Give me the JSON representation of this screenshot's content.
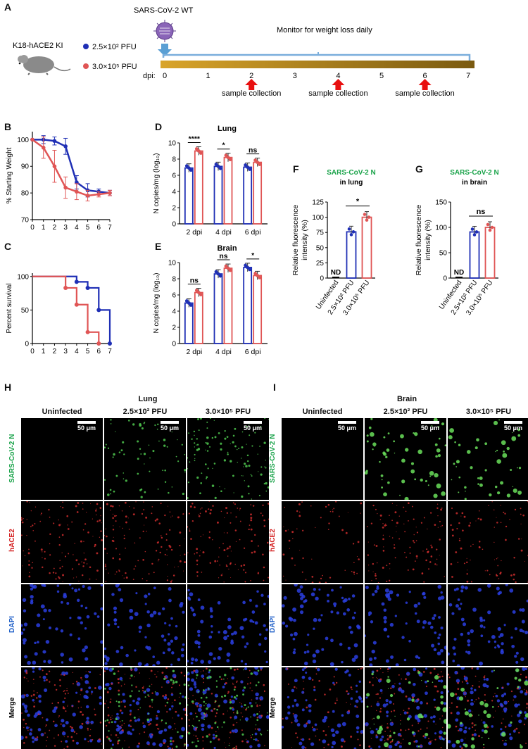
{
  "panel_labels": {
    "A": "A",
    "B": "B",
    "C": "C",
    "D": "D",
    "E": "E",
    "F": "F",
    "G": "G",
    "H": "H",
    "I": "I"
  },
  "timeline": {
    "mouse": "K18-hACE2 KI",
    "virus": "SARS-CoV-2 WT",
    "monitor": "Monitor for weight loss daily",
    "dose_low": "2.5×10² PFU",
    "dose_high": "3.0×10⁵ PFU",
    "dpi_label": "dpi:",
    "days": [
      "0",
      "1",
      "2",
      "3",
      "4",
      "5",
      "6",
      "7"
    ],
    "sample_label": "sample collection",
    "sample_days": [
      2,
      4,
      6
    ],
    "colors": {
      "low": "#1f2fb5",
      "high": "#e05555",
      "bar": "#b8860b",
      "arrow": "#e81010",
      "line": "#7aaedc"
    }
  },
  "chart_data": [
    {
      "id": "B",
      "type": "line",
      "ylabel": "% Starting Weight",
      "xticks": [
        "0",
        "1",
        "2",
        "3",
        "4",
        "5",
        "6",
        "7"
      ],
      "yticks": [
        "70",
        "80",
        "90",
        "100"
      ],
      "ylim": [
        70,
        103
      ],
      "xlim": [
        0,
        7
      ],
      "series": [
        {
          "values": [
            100,
            100,
            99.5,
            97.5,
            84,
            81,
            80.5,
            80
          ],
          "err": [
            0,
            1.5,
            1.5,
            3,
            2.5,
            2.5,
            1,
            1
          ]
        },
        {
          "values": [
            100,
            97,
            90,
            82,
            80.5,
            79,
            79.5,
            80
          ],
          "err": [
            0,
            4,
            6,
            4,
            3,
            2,
            1,
            1
          ]
        }
      ]
    },
    {
      "id": "C",
      "type": "line",
      "ylabel": "Percent survival",
      "xticks": [
        "0",
        "1",
        "2",
        "3",
        "4",
        "5",
        "6",
        "7"
      ],
      "yticks": [
        "0",
        "50",
        "100"
      ],
      "ylim": [
        0,
        105
      ],
      "xlim": [
        0,
        7
      ],
      "series": [
        {
          "steps": [
            [
              0,
              100
            ],
            [
              4,
              100
            ],
            [
              4,
              92
            ],
            [
              5,
              92
            ],
            [
              5,
              83
            ],
            [
              6,
              83
            ],
            [
              6,
              50
            ],
            [
              7,
              50
            ],
            [
              7,
              0
            ]
          ],
          "dots": [
            [
              4,
              92
            ],
            [
              5,
              83
            ],
            [
              6,
              50
            ],
            [
              7,
              0
            ]
          ]
        },
        {
          "steps": [
            [
              0,
              100
            ],
            [
              3,
              100
            ],
            [
              3,
              83
            ],
            [
              4,
              83
            ],
            [
              4,
              58
            ],
            [
              5,
              58
            ],
            [
              5,
              17
            ],
            [
              6,
              17
            ],
            [
              6,
              0
            ]
          ],
          "dots": [
            [
              3,
              83
            ],
            [
              4,
              58
            ],
            [
              5,
              17
            ],
            [
              6,
              0
            ]
          ]
        }
      ]
    },
    {
      "id": "D",
      "type": "bar",
      "title": "Lung",
      "ylabel": "N copies/mg (log₁₀)",
      "categories": [
        "2 dpi",
        "4 dpi",
        "6 dpi"
      ],
      "yticks": [
        "0",
        "2",
        "4",
        "6",
        "8",
        "10"
      ],
      "ylim": [
        0,
        10
      ],
      "series": [
        {
          "values": [
            6.9,
            7.1,
            7.0
          ]
        },
        {
          "values": [
            9.0,
            8.2,
            7.6
          ]
        }
      ],
      "sig": [
        "****",
        "*",
        "ns"
      ]
    },
    {
      "id": "E",
      "type": "bar",
      "title": "Brain",
      "ylabel": "N copies/mg (log₁₀)",
      "categories": [
        "2 dpi",
        "4 dpi",
        "6 dpi"
      ],
      "yticks": [
        "0",
        "2",
        "4",
        "6",
        "8",
        "10"
      ],
      "ylim": [
        0,
        10
      ],
      "series": [
        {
          "values": [
            5.0,
            8.6,
            9.4
          ]
        },
        {
          "values": [
            6.3,
            9.3,
            8.4
          ]
        }
      ],
      "sig": [
        "ns",
        "ns",
        "*"
      ]
    },
    {
      "id": "F",
      "type": "bar",
      "title": "SARS-CoV-2 N",
      "subtitle": "in lung",
      "ylabel": "Relative fluorescence intensity (%)",
      "categories": [
        "Uninfected",
        "2.5×10² PFU",
        "3.0×10⁵ PFU"
      ],
      "yticks": [
        "0",
        "25",
        "50",
        "75",
        "100",
        "125"
      ],
      "ylim": [
        0,
        125
      ],
      "values": [
        0,
        76,
        100
      ],
      "nd": "ND",
      "sig": "*"
    },
    {
      "id": "G",
      "type": "bar",
      "title": "SARS-CoV-2 N",
      "subtitle": "in brain",
      "ylabel": "Relative fluorescence intensity (%)",
      "categories": [
        "Uninfected",
        "2.5×10² PFU",
        "3.0×10⁵ PFU"
      ],
      "yticks": [
        "0",
        "50",
        "100",
        "150"
      ],
      "ylim": [
        0,
        150
      ],
      "values": [
        0,
        91,
        100
      ],
      "nd": "ND",
      "sig": "ns"
    }
  ],
  "micro": {
    "lung_title": "Lung",
    "brain_title": "Brain",
    "columns": [
      "Uninfected",
      "2.5×10² PFU",
      "3.0×10⁵ PFU"
    ],
    "rows": [
      "SARS-CoV-2 N",
      "hACE2",
      "DAPI",
      "Merge"
    ],
    "scale": "50 μm",
    "row_colors": [
      "#1aa34a",
      "#d42020",
      "#2060c8",
      "#000000"
    ]
  }
}
